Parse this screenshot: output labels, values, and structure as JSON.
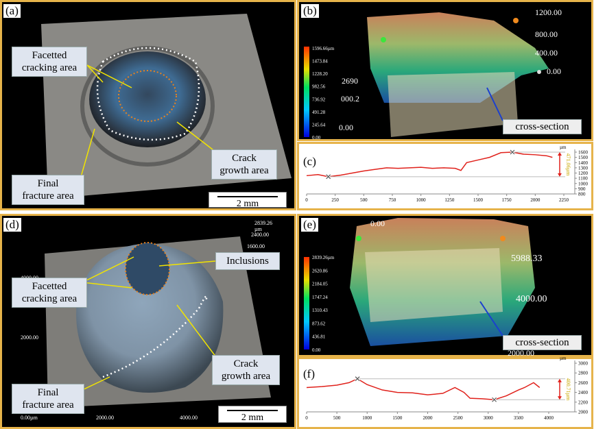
{
  "a": {
    "label": "(a)",
    "callouts": [
      "Facetted\ncracking area",
      "Crack\ngrowth area",
      "Final\nfracture area"
    ],
    "scale_bar": "2 mm"
  },
  "b": {
    "label": "(b)",
    "colorbar": [
      "1596.66µm",
      "1473.84",
      "1228.20",
      "982.56",
      "736.92",
      "491.28",
      "245.64",
      "0.00"
    ],
    "axis_labels": [
      "1200.00",
      "800.00",
      "400.00",
      "0.00"
    ],
    "other_labels": [
      "2690",
      "000.2",
      "0.00"
    ],
    "callout": "cross-section"
  },
  "d": {
    "label": "(d)",
    "callouts": [
      "Inclusions",
      "Facetted\ncracking area",
      "Crack\ngrowth area",
      "Final\nfracture area"
    ],
    "scale_bar": "2 mm",
    "axis_labels": [
      "2839.26\nµm",
      "2400.00",
      "1600.00",
      "4000.00",
      "2000.00",
      "0.00µm",
      "2000.00",
      "4000.00"
    ]
  },
  "e": {
    "label": "(e)",
    "colorbar": [
      "2839.26µm",
      "2620.86",
      "2184.05",
      "1747.24",
      "1310.43",
      "873.62",
      "436.81",
      "0.00"
    ],
    "axis_labels": [
      "5988.33",
      "4000.00",
      "2000.00",
      "0.00"
    ],
    "callout": "cross-section"
  },
  "chart_data": [
    {
      "type": "line",
      "label": "(c)",
      "unit": "µm",
      "annotation": "471.06µm",
      "color": "#e0201a",
      "x": [
        0,
        100,
        190,
        300,
        400,
        500,
        600,
        700,
        800,
        900,
        1000,
        1100,
        1200,
        1300,
        1350,
        1400,
        1500,
        1600,
        1700,
        1800,
        1900,
        2000,
        2100,
        2150
      ],
      "values": [
        1150,
        1170,
        1130,
        1160,
        1200,
        1240,
        1270,
        1300,
        1290,
        1300,
        1310,
        1290,
        1300,
        1290,
        1250,
        1400,
        1450,
        1500,
        1590,
        1600,
        1560,
        1550,
        1530,
        1500
      ],
      "xlim": [
        0,
        2250
      ],
      "ylim": [
        800,
        1600
      ],
      "xticks": [
        0,
        250,
        500,
        750,
        1000,
        1250,
        1500,
        1750,
        2000,
        2250
      ],
      "yticks": [
        800,
        900,
        1000,
        1100,
        1200,
        1300,
        1400,
        1500,
        1600
      ]
    },
    {
      "type": "line",
      "label": "(f)",
      "unit": "µm",
      "annotation": "400.71µm",
      "color": "#e0201a",
      "x": [
        0,
        250,
        500,
        700,
        840,
        1000,
        1250,
        1500,
        1750,
        2000,
        2250,
        2450,
        2600,
        2700,
        2900,
        3100,
        3300,
        3500,
        3600,
        3750,
        3850
      ],
      "values": [
        2500,
        2520,
        2550,
        2600,
        2680,
        2560,
        2450,
        2400,
        2390,
        2350,
        2380,
        2500,
        2400,
        2280,
        2270,
        2250,
        2330,
        2450,
        2500,
        2600,
        2500
      ],
      "xlim": [
        0,
        4000
      ],
      "ylim": [
        2000,
        3000
      ],
      "xticks": [
        0,
        500,
        1000,
        1500,
        2000,
        2500,
        3000,
        3500,
        4000
      ],
      "yticks": [
        2000,
        2200,
        2400,
        2600,
        2800,
        3000
      ]
    }
  ]
}
